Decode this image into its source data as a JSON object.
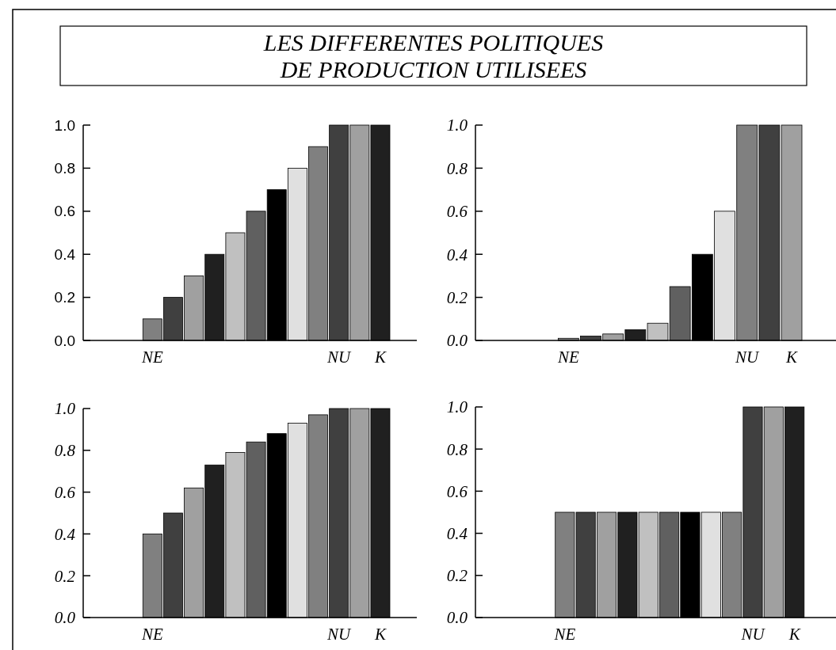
{
  "chart_data": [
    {
      "type": "bar",
      "title": "LES DIFFERENTES POLITIQUES\nDE PRODUCTION UTILISEES",
      "categories": [
        null,
        null,
        "NE",
        null,
        null,
        null,
        null,
        null,
        null,
        null,
        null,
        "NU",
        null,
        "K"
      ],
      "values": [
        0,
        0,
        0.1,
        0.2,
        0.3,
        0.4,
        0.5,
        0.6,
        0.7,
        0.8,
        0.9,
        1.0,
        1.0,
        1.0
      ],
      "colors": [
        "#000000",
        "#e0e0e0",
        "#808080",
        "#404040",
        "#a0a0a0",
        "#202020",
        "#c0c0c0",
        "#606060",
        "#000000",
        "#e0e0e0",
        "#808080",
        "#404040",
        "#a0a0a0",
        "#202020"
      ],
      "ylim": [
        0,
        1
      ],
      "yticks": [
        {
          "value": 0,
          "label": "0.0"
        },
        {
          "value": 0.2,
          "label": "0.2"
        },
        {
          "value": 0.4,
          "label": "0.4"
        },
        {
          "value": 0.6,
          "label": "0.6"
        },
        {
          "value": 0.8,
          "label": "0.8"
        },
        {
          "value": 1,
          "label": "1.0"
        }
      ]
    },
    {
      "type": "bar",
      "categories": [
        null,
        null,
        "NE",
        null,
        null,
        null,
        null,
        null,
        null,
        null,
        "NU",
        null,
        "K"
      ],
      "values": [
        0,
        0,
        0.01,
        0.02,
        0.03,
        0.05,
        0.08,
        0.25,
        0.4,
        0.6,
        1.0,
        1.0,
        1.0
      ],
      "colors": [
        "#000000",
        "#e0e0e0",
        "#808080",
        "#404040",
        "#a0a0a0",
        "#202020",
        "#c0c0c0",
        "#606060",
        "#000000",
        "#e0e0e0",
        "#808080",
        "#404040",
        "#a0a0a0"
      ],
      "ylim": [
        0,
        1
      ],
      "yticks": [
        {
          "value": 0,
          "label": "0.0"
        },
        {
          "value": 0.2,
          "label": "0.2"
        },
        {
          "value": 0.4,
          "label": "0.4"
        },
        {
          "value": 0.6,
          "label": "0.6"
        },
        {
          "value": 0.8,
          "label": "0.8"
        },
        {
          "value": 1,
          "label": "1.0"
        }
      ]
    },
    {
      "type": "bar",
      "categories": [
        null,
        null,
        "NE",
        null,
        null,
        null,
        null,
        null,
        null,
        null,
        null,
        "NU",
        null,
        "K"
      ],
      "values": [
        0,
        0,
        0.4,
        0.5,
        0.62,
        0.73,
        0.79,
        0.84,
        0.88,
        0.93,
        0.97,
        1.0,
        1.0,
        1.0
      ],
      "colors": [
        "#000000",
        "#e0e0e0",
        "#808080",
        "#404040",
        "#a0a0a0",
        "#202020",
        "#c0c0c0",
        "#606060",
        "#000000",
        "#e0e0e0",
        "#808080",
        "#404040",
        "#a0a0a0",
        "#202020"
      ],
      "ylim": [
        0,
        1
      ],
      "yticks": [
        {
          "value": 0,
          "label": "0.0"
        },
        {
          "value": 0.2,
          "label": "0.2"
        },
        {
          "value": 0.4,
          "label": "0.4"
        },
        {
          "value": 0.6,
          "label": "0.6"
        },
        {
          "value": 0.8,
          "label": "0.8"
        },
        {
          "value": 1,
          "label": "1.0"
        }
      ]
    },
    {
      "type": "bar",
      "categories": [
        null,
        null,
        "NE",
        null,
        null,
        null,
        null,
        null,
        null,
        null,
        null,
        "NU",
        null,
        "K"
      ],
      "values": [
        0,
        0,
        0.5,
        0.5,
        0.5,
        0.5,
        0.5,
        0.5,
        0.5,
        0.5,
        0.5,
        1.0,
        1.0,
        1.0
      ],
      "colors": [
        "#000000",
        "#e0e0e0",
        "#808080",
        "#404040",
        "#a0a0a0",
        "#202020",
        "#c0c0c0",
        "#606060",
        "#000000",
        "#e0e0e0",
        "#808080",
        "#404040",
        "#a0a0a0",
        "#202020"
      ],
      "ylim": [
        0,
        1
      ],
      "yticks": [
        {
          "value": 0,
          "label": "0.0"
        },
        {
          "value": 0.2,
          "label": "0.2"
        },
        {
          "value": 0.4,
          "label": "0.4"
        },
        {
          "value": 0.6,
          "label": "0.6"
        },
        {
          "value": 0.8,
          "label": "0.8"
        },
        {
          "value": 1,
          "label": "1.0"
        }
      ]
    }
  ]
}
